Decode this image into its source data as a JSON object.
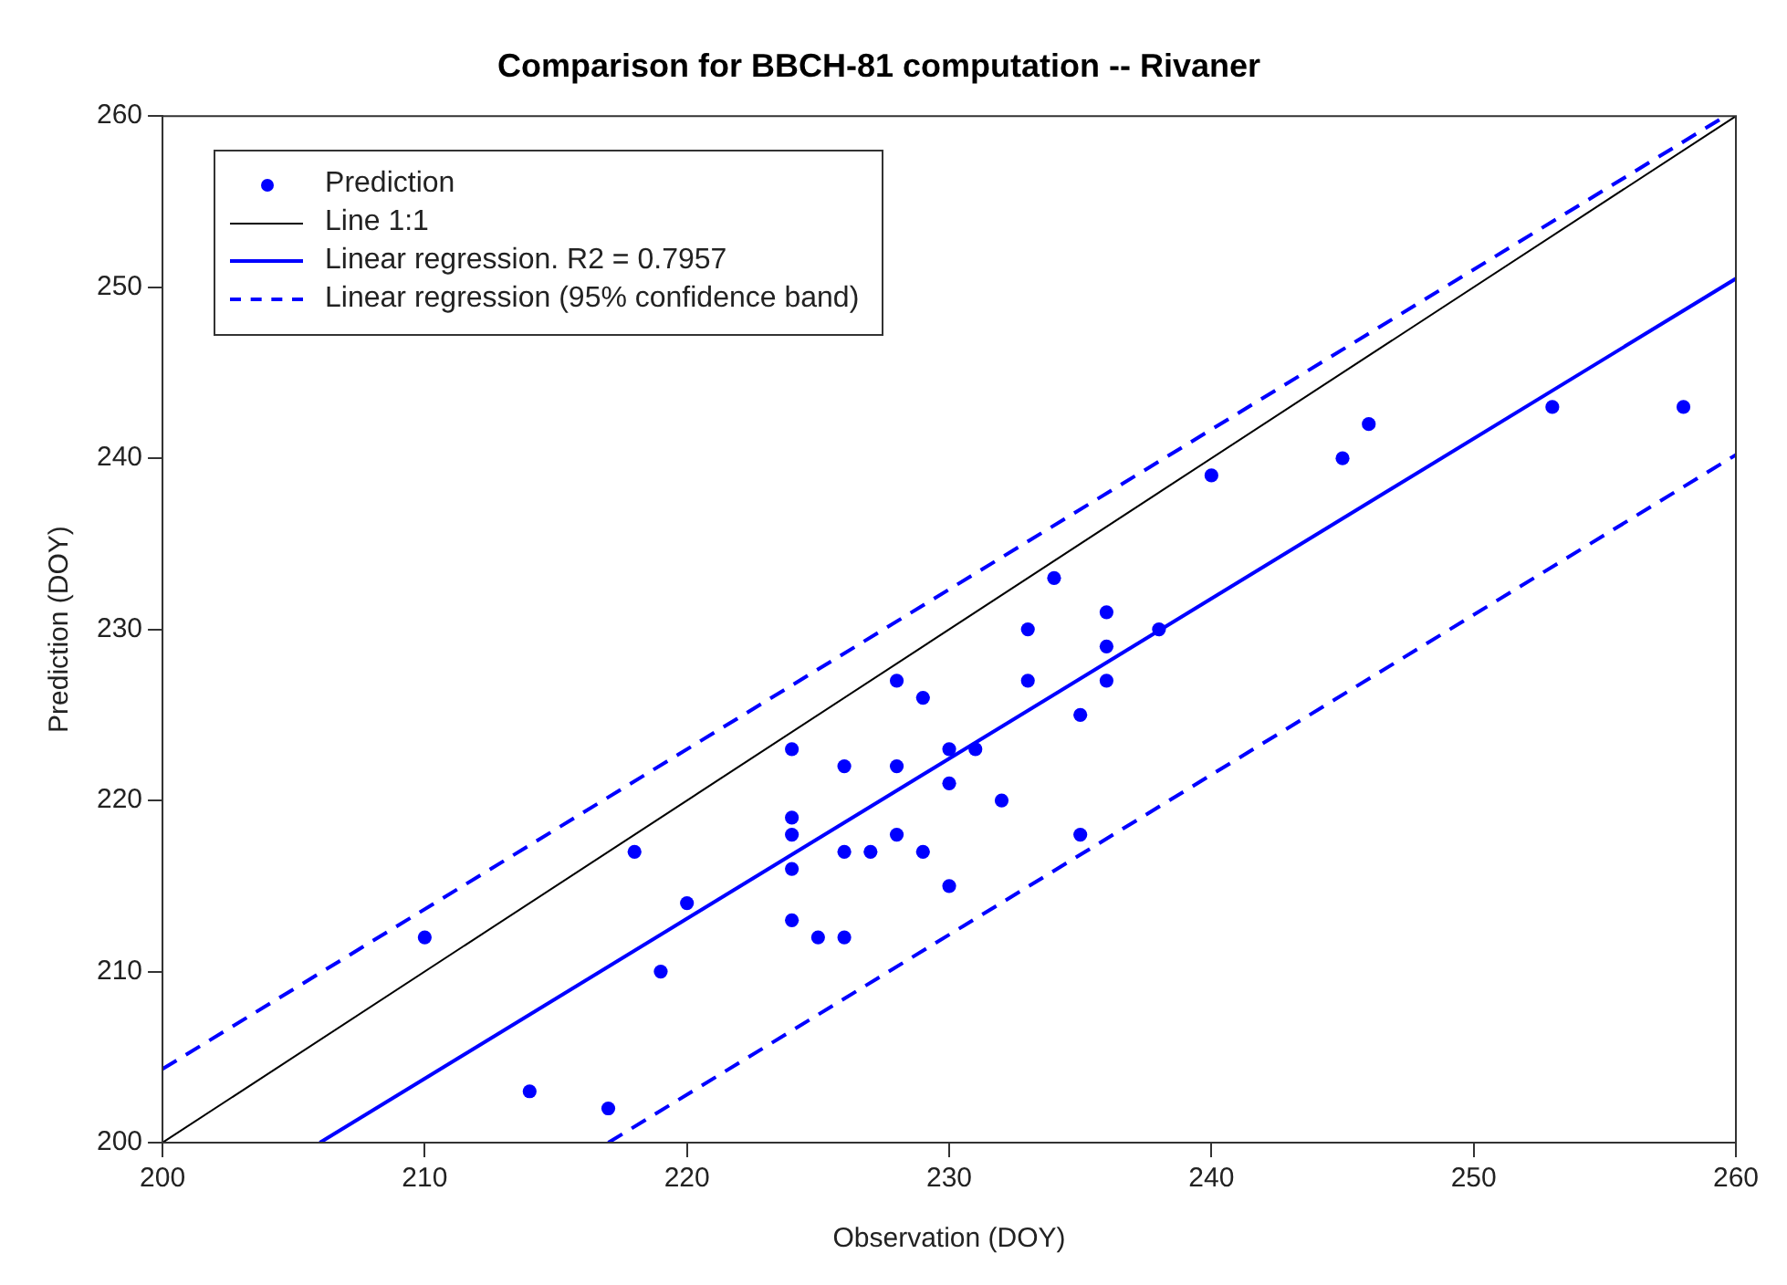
{
  "chart_data": {
    "type": "scatter",
    "title": "Comparison for BBCH-81 computation -- Rivaner",
    "xlabel": "Observation (DOY)",
    "ylabel": "Prediction (DOY)",
    "xlim": [
      200,
      260
    ],
    "ylim": [
      200,
      260
    ],
    "xticks": [
      200,
      210,
      220,
      230,
      240,
      250,
      260
    ],
    "yticks": [
      200,
      210,
      220,
      230,
      240,
      250,
      260
    ],
    "grid": false,
    "legend": "top left",
    "series": [
      {
        "name": "Prediction",
        "type": "scatter",
        "marker": "circle",
        "color": "#0000ff",
        "x": [
          210,
          214,
          217,
          218,
          219,
          220,
          224,
          224,
          224,
          224,
          224,
          225,
          226,
          226,
          226,
          227,
          228,
          228,
          228,
          229,
          229,
          230,
          230,
          230,
          231,
          232,
          233,
          233,
          234,
          235,
          235,
          236,
          236,
          236,
          238,
          240,
          245,
          246,
          253,
          258
        ],
        "values": [
          212,
          203,
          202,
          217,
          210,
          214,
          223,
          219,
          218,
          216,
          213,
          212,
          222,
          217,
          212,
          217,
          227,
          222,
          218,
          226,
          217,
          223,
          221,
          215,
          223,
          220,
          230,
          227,
          233,
          225,
          218,
          231,
          229,
          227,
          230,
          239,
          240,
          242,
          243,
          243
        ]
      },
      {
        "name": "Line 1:1",
        "type": "line",
        "marker": "none",
        "line_style": "solid",
        "color": "#000000",
        "x": [
          200,
          260
        ],
        "values": [
          200,
          260
        ]
      },
      {
        "name": "Linear regression. R2 = 0.7957",
        "type": "line",
        "marker": "none",
        "line_style": "solid",
        "color": "#0000ff",
        "x": [
          206,
          260
        ],
        "values": [
          200,
          250.5
        ]
      },
      {
        "name": "Linear regression (95% confidence band)",
        "type": "line",
        "marker": "none",
        "line_style": "dashed",
        "color": "#0000ff",
        "x": [
          200,
          259.6
        ],
        "values": [
          204.3,
          260
        ]
      },
      {
        "type": "line",
        "marker": "none",
        "line_style": "dashed",
        "color": "#0000ff",
        "x": [
          217,
          260
        ],
        "values": [
          200,
          240.2
        ]
      }
    ]
  }
}
